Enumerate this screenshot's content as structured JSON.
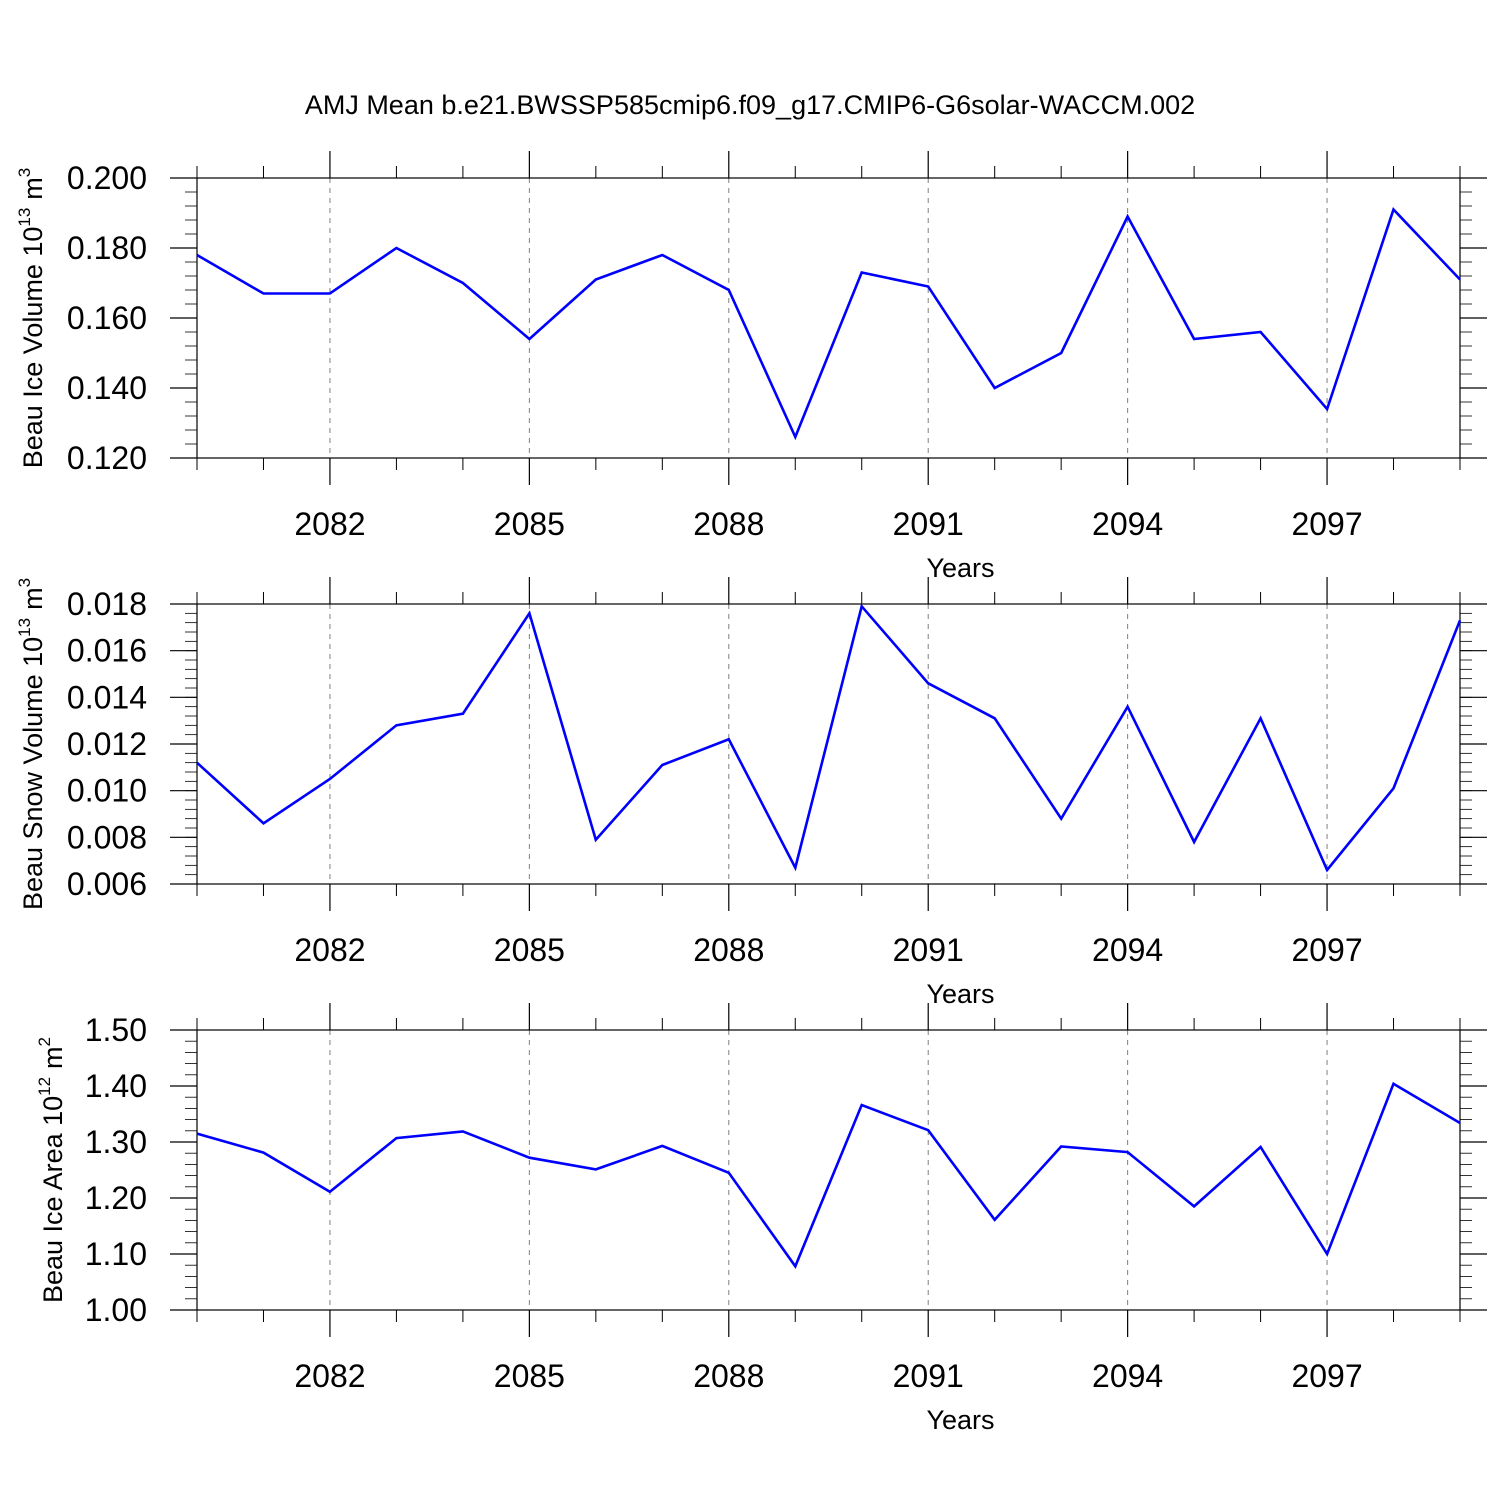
{
  "title": "AMJ Mean b.e21.BWSSP585cmip6.f09_g17.CMIP6-G6solar-WACCM.002",
  "colors": {
    "line": "#0000ff",
    "axis": "#000000",
    "grid": "#808080",
    "background": "#ffffff"
  },
  "chart_data": [
    {
      "type": "line",
      "xlabel": "Years",
      "ylabel": {
        "text": "Beau Ice Volume 10",
        "exponent": "13",
        "unit": "m",
        "unit_exponent": "3"
      },
      "x": [
        2080,
        2081,
        2082,
        2083,
        2084,
        2085,
        2086,
        2087,
        2088,
        2089,
        2090,
        2091,
        2092,
        2093,
        2094,
        2095,
        2096,
        2097,
        2098,
        2099
      ],
      "values": [
        0.178,
        0.167,
        0.167,
        0.18,
        0.17,
        0.154,
        0.171,
        0.178,
        0.168,
        0.126,
        0.173,
        0.169,
        0.14,
        0.15,
        0.189,
        0.154,
        0.156,
        0.134,
        0.191,
        0.171
      ],
      "xlim": [
        2080,
        2099
      ],
      "ylim": [
        0.12,
        0.2
      ],
      "x_tick_values": [
        2082,
        2085,
        2088,
        2091,
        2094,
        2097
      ],
      "x_tick_labels": [
        "2082",
        "2085",
        "2088",
        "2091",
        "2094",
        "2097"
      ],
      "y_tick_values": [
        0.12,
        0.14,
        0.16,
        0.18,
        0.2
      ],
      "y_tick_labels": [
        "0.120",
        "0.140",
        "0.160",
        "0.180",
        "0.200"
      ],
      "y_minor_step": 0.004,
      "grid": "vertical dashed at labeled years"
    },
    {
      "type": "line",
      "xlabel": "Years",
      "ylabel": {
        "text": "Beau Snow Volume 10",
        "exponent": "13",
        "unit": "m",
        "unit_exponent": "3"
      },
      "x": [
        2080,
        2081,
        2082,
        2083,
        2084,
        2085,
        2086,
        2087,
        2088,
        2089,
        2090,
        2091,
        2092,
        2093,
        2094,
        2095,
        2096,
        2097,
        2098,
        2099
      ],
      "values": [
        0.0112,
        0.0086,
        0.0105,
        0.0128,
        0.0133,
        0.0176,
        0.0079,
        0.0111,
        0.0122,
        0.0067,
        0.0179,
        0.0146,
        0.0131,
        0.0088,
        0.0136,
        0.0078,
        0.0131,
        0.0066,
        0.0101,
        0.0173
      ],
      "xlim": [
        2080,
        2099
      ],
      "ylim": [
        0.006,
        0.018
      ],
      "x_tick_values": [
        2082,
        2085,
        2088,
        2091,
        2094,
        2097
      ],
      "x_tick_labels": [
        "2082",
        "2085",
        "2088",
        "2091",
        "2094",
        "2097"
      ],
      "y_tick_values": [
        0.006,
        0.008,
        0.01,
        0.012,
        0.014,
        0.016,
        0.018
      ],
      "y_tick_labels": [
        "0.006",
        "0.008",
        "0.010",
        "0.012",
        "0.014",
        "0.016",
        "0.018"
      ],
      "y_minor_step": 0.0004,
      "grid": "vertical dashed at labeled years"
    },
    {
      "type": "line",
      "xlabel": "Years",
      "ylabel": {
        "text": "Beau Ice Area 10",
        "exponent": "12",
        "unit": "m",
        "unit_exponent": "2"
      },
      "x": [
        2080,
        2081,
        2082,
        2083,
        2084,
        2085,
        2086,
        2087,
        2088,
        2089,
        2090,
        2091,
        2092,
        2093,
        2094,
        2095,
        2096,
        2097,
        2098,
        2099
      ],
      "values": [
        1.315,
        1.281,
        1.211,
        1.307,
        1.319,
        1.272,
        1.251,
        1.293,
        1.245,
        1.078,
        1.366,
        1.321,
        1.161,
        1.292,
        1.282,
        1.185,
        1.291,
        1.1,
        1.404,
        1.334
      ],
      "xlim": [
        2080,
        2099
      ],
      "ylim": [
        1.0,
        1.5
      ],
      "x_tick_values": [
        2082,
        2085,
        2088,
        2091,
        2094,
        2097
      ],
      "x_tick_labels": [
        "2082",
        "2085",
        "2088",
        "2091",
        "2094",
        "2097"
      ],
      "y_tick_values": [
        1.0,
        1.1,
        1.2,
        1.3,
        1.4,
        1.5
      ],
      "y_tick_labels": [
        "1.00",
        "1.10",
        "1.20",
        "1.30",
        "1.40",
        "1.50"
      ],
      "y_minor_step": 0.02,
      "grid": "vertical dashed at labeled years"
    }
  ]
}
